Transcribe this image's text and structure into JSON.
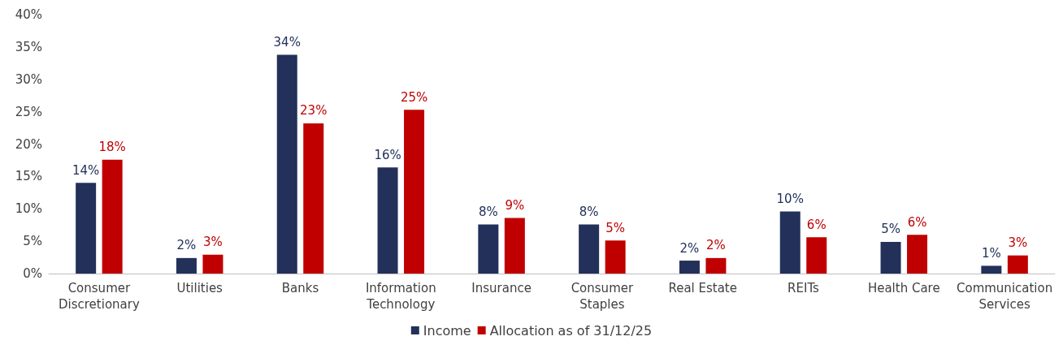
{
  "chart_data": {
    "type": "bar",
    "categories": [
      "Consumer\nDiscretionary",
      "Utilities",
      "Banks",
      "Information\nTechnology",
      "Insurance",
      "Consumer\nStaples",
      "Real Estate",
      "REITs",
      "Health Care",
      "Communication\nServices"
    ],
    "series": [
      {
        "name": "Income",
        "color": "#22305a",
        "values": [
          14.0,
          2.4,
          33.8,
          16.4,
          7.6,
          7.6,
          2.0,
          9.6,
          4.9,
          1.2
        ],
        "value_labels": [
          "14%",
          "2%",
          "34%",
          "16%",
          "8%",
          "8%",
          "2%",
          "10%",
          "5%",
          "1%"
        ]
      },
      {
        "name": "Allocation as of 31/12/25",
        "color": "#c00000",
        "values": [
          17.6,
          2.9,
          23.2,
          25.3,
          8.6,
          5.1,
          2.4,
          5.6,
          6.0,
          2.8
        ],
        "value_labels": [
          "18%",
          "3%",
          "23%",
          "25%",
          "9%",
          "5%",
          "2%",
          "6%",
          "6%",
          "3%"
        ]
      }
    ],
    "ylim": [
      0,
      40
    ],
    "yticks": [
      {
        "value": 0,
        "label": "0%"
      },
      {
        "value": 5,
        "label": "5%"
      },
      {
        "value": 10,
        "label": "10%"
      },
      {
        "value": 15,
        "label": "15%"
      },
      {
        "value": 20,
        "label": "20%"
      },
      {
        "value": 25,
        "label": "25%"
      },
      {
        "value": 30,
        "label": "30%"
      },
      {
        "value": 35,
        "label": "35%"
      },
      {
        "value": 40,
        "label": "40%"
      }
    ],
    "grid": false,
    "legend": "bottom"
  }
}
